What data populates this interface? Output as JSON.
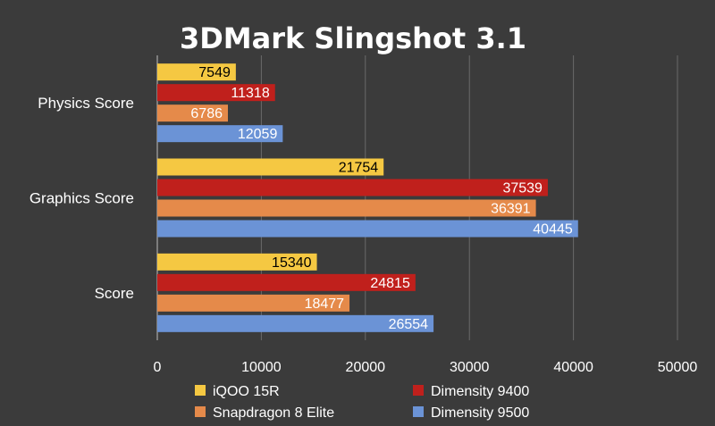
{
  "chart_data": {
    "type": "bar",
    "orientation": "horizontal",
    "title": "3DMark Slingshot 3.1",
    "xlabel": "",
    "ylabel": "",
    "categories": [
      "Physics Score",
      "Graphics Score",
      "Score"
    ],
    "series": [
      {
        "name": "iQOO 15R",
        "values": [
          7549,
          21754,
          15340
        ],
        "color": "#f5c842",
        "label_color": "#000000"
      },
      {
        "name": "Dimensity 9400",
        "values": [
          11318,
          37539,
          24815
        ],
        "color": "#c0201c",
        "label_color": "#ffffff"
      },
      {
        "name": "Snapdragon 8 Elite",
        "values": [
          6786,
          36391,
          18477
        ],
        "color": "#e58a4a",
        "label_color": "#ffffff"
      },
      {
        "name": "Dimensity 9500",
        "values": [
          12059,
          40445,
          26554
        ],
        "color": "#6b93d6",
        "label_color": "#ffffff"
      }
    ],
    "xlim": [
      0,
      50000
    ],
    "xticks": [
      "0",
      "10000",
      "20000",
      "30000",
      "40000",
      "50000"
    ],
    "grid": true,
    "legend_position": "bottom"
  }
}
